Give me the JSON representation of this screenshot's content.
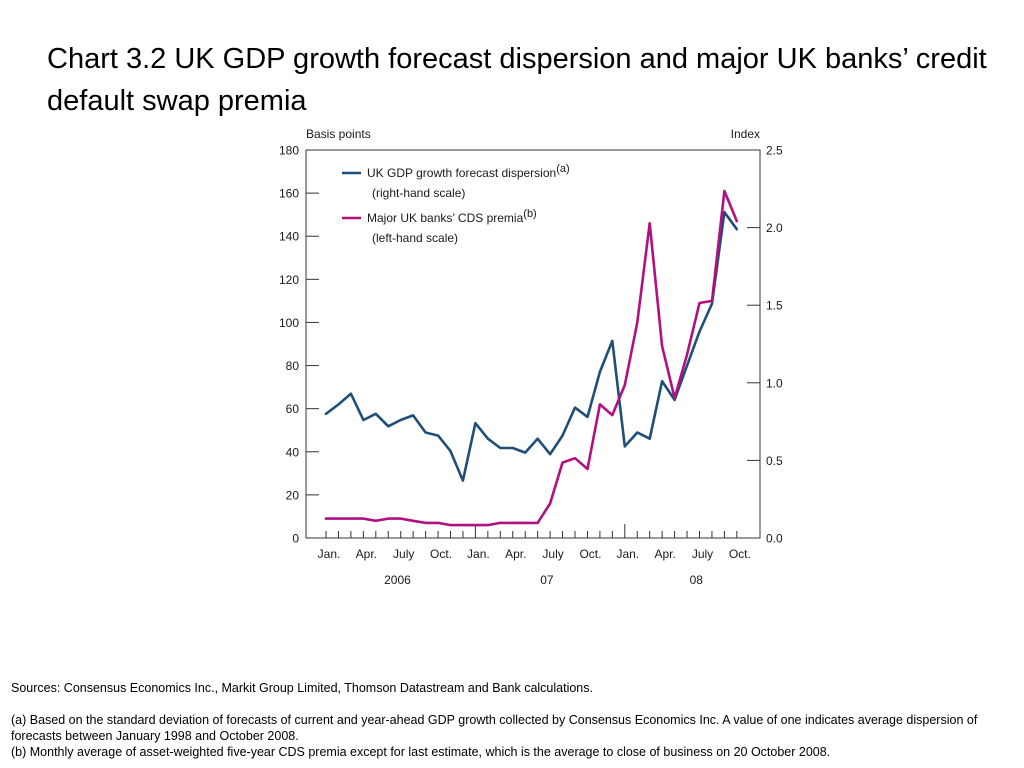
{
  "title": "Chart 3.2  UK GDP growth forecast dispersion and major UK banks’ credit default swap premia",
  "colors": {
    "gdp": "#1f4e79",
    "cds": "#b01080",
    "axis": "#333333"
  },
  "chart_data": {
    "type": "line",
    "left_axis": {
      "label": "Basis points",
      "range": [
        0,
        180
      ],
      "ticks": [
        0,
        20,
        40,
        60,
        80,
        100,
        120,
        140,
        160,
        180
      ]
    },
    "right_axis": {
      "label": "Index",
      "range": [
        0,
        2.5
      ],
      "ticks": [
        "0.0",
        "0.5",
        "1.0",
        "1.5",
        "2.0",
        "2.5"
      ]
    },
    "x_month_labels": [
      "Jan.",
      "Apr.",
      "July",
      "Oct.",
      "Jan.",
      "Apr.",
      "July",
      "Oct.",
      "Jan.",
      "Apr.",
      "July",
      "Oct."
    ],
    "x_year_labels": [
      "2006",
      "07",
      "08"
    ],
    "months": [
      "2006-01",
      "2006-02",
      "2006-03",
      "2006-04",
      "2006-05",
      "2006-06",
      "2006-07",
      "2006-08",
      "2006-09",
      "2006-10",
      "2006-11",
      "2006-12",
      "2007-01",
      "2007-02",
      "2007-03",
      "2007-04",
      "2007-05",
      "2007-06",
      "2007-07",
      "2007-08",
      "2007-09",
      "2007-10",
      "2007-11",
      "2007-12",
      "2008-01",
      "2008-02",
      "2008-03",
      "2008-04",
      "2008-05",
      "2008-06",
      "2008-07",
      "2008-08",
      "2008-09",
      "2008-10"
    ],
    "legend_placement": "top-left",
    "series": [
      {
        "name": "UK GDP growth forecast dispersion",
        "superscript": "(a)",
        "scale_note": "(right-hand scale)",
        "axis": "right",
        "color": "#1f4e79",
        "values": [
          0.8,
          0.86,
          0.93,
          0.76,
          0.8,
          0.72,
          0.76,
          0.79,
          0.68,
          0.66,
          0.56,
          0.37,
          0.74,
          0.64,
          0.58,
          0.58,
          0.55,
          0.64,
          0.54,
          0.66,
          0.84,
          0.78,
          1.07,
          1.27,
          0.59,
          0.68,
          0.64,
          1.01,
          0.89,
          1.11,
          1.33,
          1.51,
          2.1,
          1.99
        ]
      },
      {
        "name": "Major UK banks’ CDS premia",
        "superscript": "(b)",
        "scale_note": "(left-hand scale)",
        "axis": "left",
        "color": "#b01080",
        "values": [
          9,
          9,
          9,
          9,
          8,
          9,
          9,
          8,
          7,
          7,
          6,
          6,
          6,
          6,
          7,
          7,
          7,
          7,
          16,
          35,
          37,
          32,
          62,
          57,
          71,
          100,
          146,
          89,
          65,
          85,
          109,
          110,
          161,
          147
        ]
      }
    ]
  },
  "footnotes": {
    "sources": "Sources:  Consensus Economics Inc., Markit Group Limited, Thomson Datastream and Bank calculations.",
    "note_a": "(a)  Based on the standard deviation of forecasts of current and year-ahead GDP growth collected by Consensus Economics Inc.  A value of one indicates average dispersion of forecasts between January 1998 and October 2008.",
    "note_b": "(b)  Monthly average of asset-weighted five-year CDS premia except for last estimate, which is the average to close of business on 20 October 2008."
  }
}
